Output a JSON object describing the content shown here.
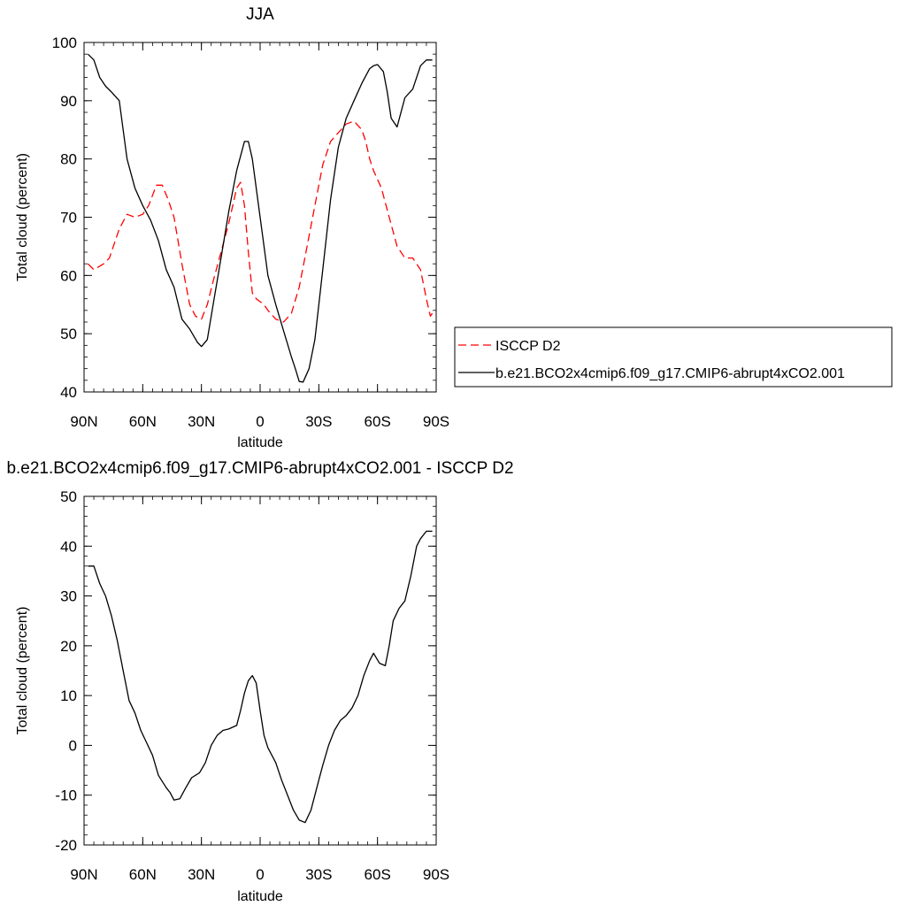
{
  "chart_data": [
    {
      "type": "line",
      "title": "JJA",
      "xlabel": "latitude",
      "ylabel": "Total cloud (percent)",
      "xlim": [
        90,
        -90
      ],
      "ylim": [
        40,
        100
      ],
      "xticks": [
        90,
        60,
        30,
        0,
        -30,
        -60,
        -90
      ],
      "xtick_labels": [
        "90N",
        "60N",
        "30N",
        "0",
        "30S",
        "60S",
        "90S"
      ],
      "yticks": [
        40,
        50,
        60,
        70,
        80,
        90,
        100
      ],
      "ytick_labels": [
        "40",
        "50",
        "60",
        "70",
        "80",
        "90",
        "100"
      ],
      "legend": "right",
      "series": [
        {
          "name": "ISCCP D2",
          "color": "#ff0000",
          "dash": "dashed",
          "x": [
            88,
            85,
            80,
            77,
            72,
            68,
            64,
            60,
            57,
            53,
            50,
            47,
            44,
            40,
            36,
            33,
            30,
            27,
            24,
            20,
            16,
            12,
            10,
            8,
            6,
            4,
            2,
            0,
            -2,
            -4,
            -8,
            -12,
            -16,
            -20,
            -24,
            -28,
            -32,
            -36,
            -40,
            -44,
            -48,
            -52,
            -54,
            -56,
            -58,
            -62,
            -66,
            -70,
            -74,
            -78,
            -82,
            -85,
            -87,
            -89
          ],
          "y": [
            62,
            61,
            62,
            63,
            68,
            70.5,
            70,
            70.5,
            72,
            75.5,
            75.5,
            73,
            70,
            62,
            55,
            53,
            52.5,
            55,
            59,
            64,
            69,
            75,
            76,
            72,
            64,
            57,
            56,
            55.5,
            55,
            54,
            52.5,
            52,
            53.5,
            58,
            65,
            72,
            79,
            83,
            84.5,
            86,
            86.5,
            85,
            83,
            80,
            78,
            75,
            70,
            65,
            63,
            63,
            61,
            56,
            53,
            54
          ]
        },
        {
          "name": "b.e21.BCO2x4cmip6.f09_g17.CMIP6-abrupt4xCO2.001",
          "color": "#000000",
          "dash": "solid",
          "x": [
            88,
            85,
            82,
            79,
            76,
            72,
            70,
            68,
            64,
            60,
            56,
            52,
            48,
            44,
            40,
            36,
            32,
            30,
            27,
            24,
            20,
            16,
            12,
            8,
            6,
            4,
            0,
            -4,
            -8,
            -12,
            -16,
            -18,
            -20,
            -22,
            -25,
            -28,
            -32,
            -36,
            -40,
            -44,
            -48,
            -52,
            -56,
            -58,
            -60,
            -63,
            -65,
            -67,
            -70,
            -74,
            -78,
            -82,
            -85,
            -88
          ],
          "y": [
            98,
            97,
            94,
            92.5,
            91.5,
            90,
            85,
            80,
            75,
            72,
            69.5,
            66,
            61,
            58,
            52.5,
            50.8,
            48.5,
            47.8,
            49,
            55,
            63,
            71,
            78,
            83,
            83,
            80,
            70,
            60,
            55,
            50.5,
            46,
            44,
            41.8,
            41.7,
            44,
            49,
            61,
            73,
            82,
            87,
            90,
            93,
            95.5,
            96,
            96.2,
            95,
            91.5,
            87,
            85.5,
            90.5,
            92,
            96,
            97,
            97
          ]
        }
      ]
    },
    {
      "type": "line",
      "title": "b.e21.BCO2x4cmip6.f09_g17.CMIP6-abrupt4xCO2.001 - ISCCP D2",
      "xlabel": "latitude",
      "ylabel": "Total cloud (percent)",
      "xlim": [
        90,
        -90
      ],
      "ylim": [
        -20,
        50
      ],
      "xticks": [
        90,
        60,
        30,
        0,
        -30,
        -60,
        -90
      ],
      "xtick_labels": [
        "90N",
        "60N",
        "30N",
        "0",
        "30S",
        "60S",
        "90S"
      ],
      "yticks": [
        -20,
        -10,
        0,
        10,
        20,
        30,
        40,
        50
      ],
      "ytick_labels": [
        "-20",
        "-10",
        "0",
        "10",
        "20",
        "30",
        "40",
        "50"
      ],
      "series": [
        {
          "color": "#000000",
          "dash": "solid",
          "x": [
            88,
            85,
            82,
            79,
            76,
            73,
            70,
            67,
            64,
            61,
            58,
            55,
            52,
            48,
            46,
            44,
            41,
            38,
            35,
            31,
            28,
            25,
            22,
            19,
            16,
            12,
            10,
            8,
            6,
            4,
            2,
            0,
            -2,
            -4,
            -6,
            -8,
            -11,
            -14,
            -17,
            -20,
            -23,
            -26,
            -28,
            -30,
            -32,
            -35,
            -38,
            -41,
            -44,
            -47,
            -50,
            -53,
            -56,
            -58,
            -61,
            -64,
            -66,
            -68,
            -71,
            -74,
            -77,
            -80,
            -82,
            -85,
            -88
          ],
          "y": [
            36,
            36,
            32.5,
            30,
            26,
            21,
            15,
            9,
            6.5,
            3,
            0.5,
            -2,
            -6,
            -8.5,
            -9.5,
            -11,
            -10.7,
            -8.5,
            -6.5,
            -5.5,
            -3.5,
            0,
            2,
            3,
            3.3,
            4,
            7,
            10.5,
            13,
            14,
            12.5,
            7,
            2,
            -0.5,
            -2,
            -3.5,
            -7,
            -10,
            -13,
            -15,
            -15.5,
            -13,
            -10,
            -7,
            -4,
            0,
            3,
            5,
            6,
            7.5,
            10,
            14,
            17,
            18.5,
            16.5,
            16,
            20,
            25,
            27.5,
            29,
            34,
            40,
            41.5,
            43,
            43
          ]
        }
      ]
    }
  ]
}
